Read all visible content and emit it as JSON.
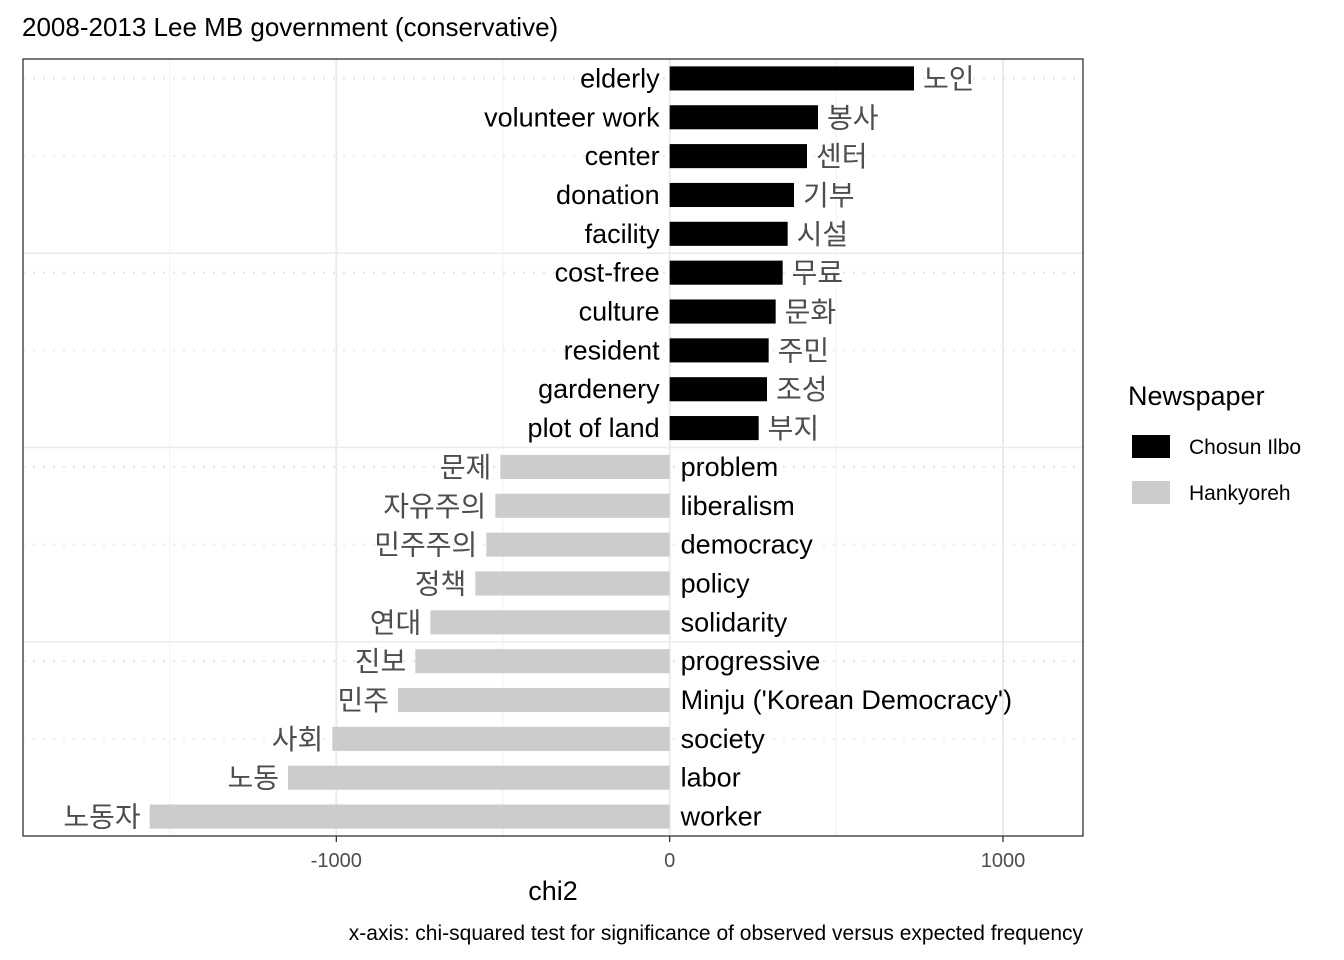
{
  "chart_data": {
    "type": "bar",
    "orientation": "horizontal",
    "title": "2008-2013 Lee MB government (conservative)",
    "xlabel": "chi2",
    "ylabel": "",
    "caption": "x-axis: chi-squared test for significance of observed versus expected frequency",
    "xlim": [
      -1940,
      1240
    ],
    "xticks": [
      -1000,
      0,
      1000
    ],
    "xtick_labels": [
      "-1000",
      "0",
      "1000"
    ],
    "grid": true,
    "legend": {
      "title": "Newspaper",
      "position": "right",
      "entries": [
        {
          "name": "Chosun Ilbo",
          "color": "#000000"
        },
        {
          "name": "Hankyoreh",
          "color": "#cccccc"
        }
      ]
    },
    "colors": {
      "Chosun Ilbo": "#000000",
      "Hankyoreh": "#cccccc"
    },
    "bars": [
      {
        "english": "elderly",
        "korean": "노인",
        "value": 733,
        "newspaper": "Chosun Ilbo"
      },
      {
        "english": "volunteer work",
        "korean": "봉사",
        "value": 445,
        "newspaper": "Chosun Ilbo"
      },
      {
        "english": "center",
        "korean": "센터",
        "value": 412,
        "newspaper": "Chosun Ilbo"
      },
      {
        "english": "donation",
        "korean": "기부",
        "value": 373,
        "newspaper": "Chosun Ilbo"
      },
      {
        "english": "facility",
        "korean": "시설",
        "value": 354,
        "newspaper": "Chosun Ilbo"
      },
      {
        "english": "cost-free",
        "korean": "무료",
        "value": 339,
        "newspaper": "Chosun Ilbo"
      },
      {
        "english": "culture",
        "korean": "문화",
        "value": 318,
        "newspaper": "Chosun Ilbo"
      },
      {
        "english": "resident",
        "korean": "주민",
        "value": 297,
        "newspaper": "Chosun Ilbo"
      },
      {
        "english": "gardenery",
        "korean": "조성",
        "value": 292,
        "newspaper": "Chosun Ilbo"
      },
      {
        "english": "plot of land",
        "korean": "부지",
        "value": 267,
        "newspaper": "Chosun Ilbo"
      },
      {
        "english": "problem",
        "korean": "문제",
        "value": -508,
        "newspaper": "Hankyoreh"
      },
      {
        "english": "liberalism",
        "korean": "자유주의",
        "value": -523,
        "newspaper": "Hankyoreh"
      },
      {
        "english": "democracy",
        "korean": "민주주의",
        "value": -550,
        "newspaper": "Hankyoreh"
      },
      {
        "english": "policy",
        "korean": "정책",
        "value": -583,
        "newspaper": "Hankyoreh"
      },
      {
        "english": "solidarity",
        "korean": "연대",
        "value": -718,
        "newspaper": "Hankyoreh"
      },
      {
        "english": "progressive",
        "korean": "진보",
        "value": -763,
        "newspaper": "Hankyoreh"
      },
      {
        "english": "Minju ('Korean Democracy')",
        "korean": "민주",
        "value": -815,
        "newspaper": "Hankyoreh"
      },
      {
        "english": "society",
        "korean": "사회",
        "value": -1012,
        "newspaper": "Hankyoreh"
      },
      {
        "english": "labor",
        "korean": "노동",
        "value": -1145,
        "newspaper": "Hankyoreh"
      },
      {
        "english": "worker",
        "korean": "노동자",
        "value": -1560,
        "newspaper": "Hankyoreh"
      }
    ]
  }
}
